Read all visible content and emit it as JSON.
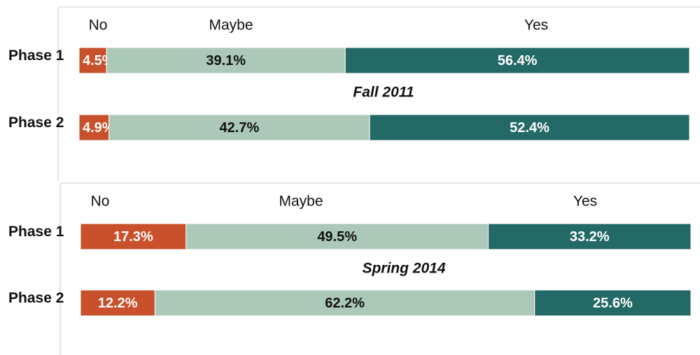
{
  "chart_data": [
    {
      "type": "stacked-bar",
      "subtitle": "Fall 2011",
      "categories": [
        "Phase 1",
        "Phase 2"
      ],
      "xlim": [
        0,
        100
      ],
      "series": [
        {
          "name": "No",
          "color": "#c8502a",
          "values": [
            4.5,
            4.9
          ],
          "value_labels": [
            "4.5%",
            "4.9%"
          ]
        },
        {
          "name": "Maybe",
          "color": "#abc8b8",
          "values": [
            39.1,
            42.7
          ],
          "value_labels": [
            "39.1%",
            "42.7%"
          ]
        },
        {
          "name": "Yes",
          "color": "#236966",
          "values": [
            56.4,
            52.4
          ],
          "value_labels": [
            "56.4%",
            "52.4%"
          ]
        }
      ]
    },
    {
      "type": "stacked-bar",
      "subtitle": "Spring 2014",
      "categories": [
        "Phase 1",
        "Phase 2"
      ],
      "xlim": [
        0,
        100
      ],
      "series": [
        {
          "name": "No",
          "color": "#c8502a",
          "values": [
            17.3,
            12.2
          ],
          "value_labels": [
            "17.3%",
            "12.2%"
          ]
        },
        {
          "name": "Maybe",
          "color": "#abc8b8",
          "values": [
            49.5,
            62.2
          ],
          "value_labels": [
            "49.5%",
            "62.2%"
          ]
        },
        {
          "name": "Yes",
          "color": "#236966",
          "values": [
            33.2,
            25.6
          ],
          "value_labels": [
            "33.2%",
            "25.6%"
          ]
        }
      ]
    }
  ]
}
